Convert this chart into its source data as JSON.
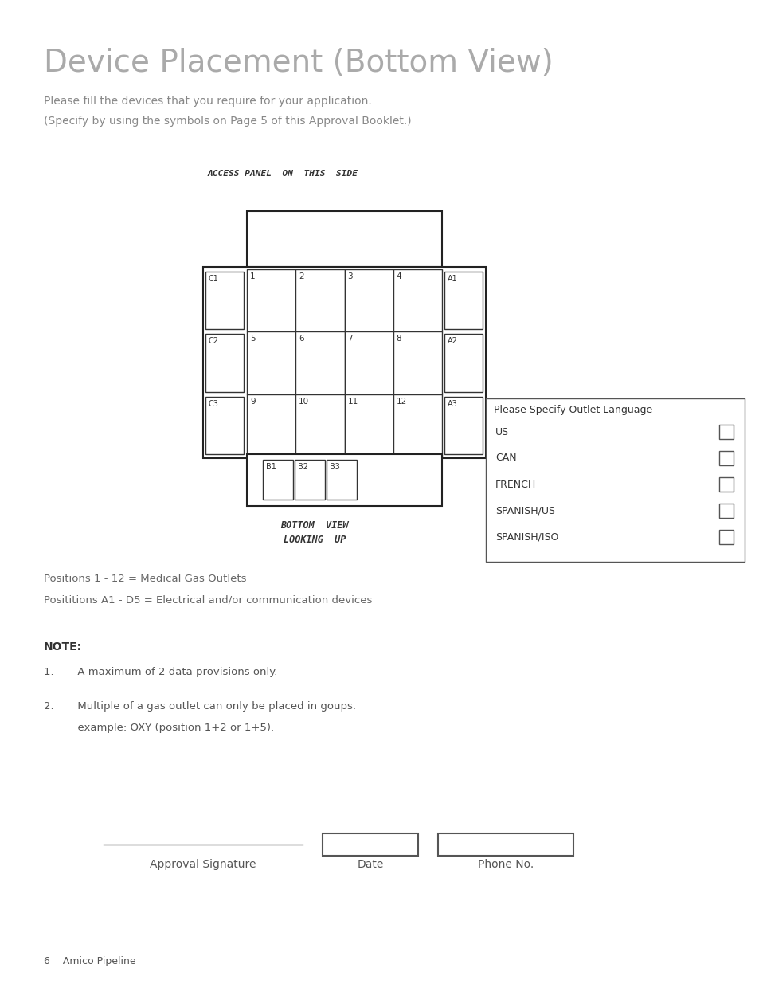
{
  "title": "Device Placement (Bottom View)",
  "subtitle_line1": "Please fill the devices that you require for your application.",
  "subtitle_line2": "(Specify by using the symbols on Page 5 of this Approval Booklet.)",
  "access_panel_label": "ACCESS PANEL  ON  THIS  SIDE",
  "bottom_view_label": "BOTTOM  VIEW\nLOOKING  UP",
  "positions_note1": "Positions 1 - 12 = Medical Gas Outlets",
  "positions_note2": "Posititions A1 - D5 = Electrical and/or communication devices",
  "note_header": "NOTE:",
  "note1": "1.       A maximum of 2 data provisions only.",
  "note2_line1": "2.       Multiple of a gas outlet can only be placed in goups.",
  "note2_line2": "          example: OXY (position 1+2 or 1+5).",
  "approval_label": "Approval Signature",
  "date_label": "Date",
  "phone_label": "Phone No.",
  "footer": "6    Amico Pipeline",
  "outlet_box_title": "Please Specify Outlet Language",
  "outlet_options": [
    "US",
    "CAN",
    "FRENCH",
    "SPANISH/US",
    "SPANISH/ISO"
  ],
  "grid_positions": [
    "1",
    "2",
    "3",
    "4",
    "5",
    "6",
    "7",
    "8",
    "9",
    "10",
    "11",
    "12"
  ],
  "left_labels": [
    "C1",
    "C2",
    "C3"
  ],
  "right_labels": [
    "A1",
    "A2",
    "A3"
  ],
  "bottom_labels": [
    "B1",
    "B2",
    "B3"
  ],
  "bg_color": "#ffffff",
  "text_color": "#999999",
  "box_edge_color": "#333333",
  "title_fontsize": 28,
  "subtitle_fontsize": 10,
  "note_fontsize": 10
}
